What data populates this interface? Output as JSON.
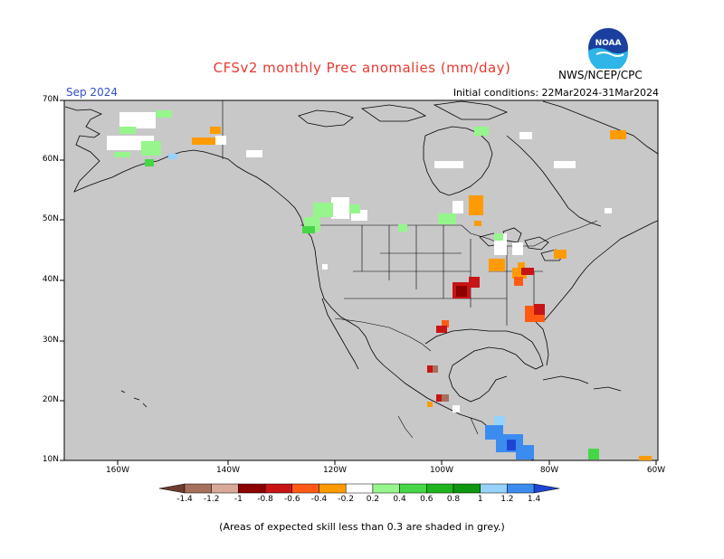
{
  "header": {
    "title": "CFSv2 monthly Prec anomalies (mm/day)",
    "month": "Sep 2024",
    "initial_conditions": "Initial conditions: 22Mar2024-31Mar2024",
    "agency": "NWS/NCEP/CPC",
    "logo_text": "NOAA"
  },
  "map": {
    "lat_labels": [
      "70N",
      "60N",
      "50N",
      "40N",
      "30N",
      "20N",
      "10N"
    ],
    "lon_labels": [
      "160W",
      "140W",
      "120W",
      "100W",
      "80W",
      "60W"
    ],
    "background_color": "#c8c8c8",
    "land_outline_color": "#000000"
  },
  "colorbar": {
    "labels": [
      "-1.4",
      "-1.2",
      "-1",
      "-0.8",
      "-0.6",
      "-0.4",
      "-0.2",
      "0.2",
      "0.4",
      "0.6",
      "0.8",
      "1",
      "1.2",
      "1.4"
    ],
    "colors": [
      "#6e3c2e",
      "#a5705c",
      "#d8a898",
      "#8c0000",
      "#c81414",
      "#ff5a14",
      "#ff9b00",
      "#ffffff",
      "#96f58c",
      "#46d746",
      "#1eb41e",
      "#0f960f",
      "#96d2fa",
      "#3c8cf0",
      "#1e46d2"
    ]
  },
  "footnote": "(Areas of expected skill less than 0.3 are shaded in grey.)"
}
